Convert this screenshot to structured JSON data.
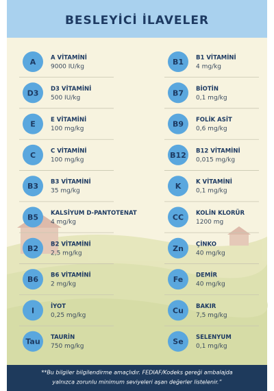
{
  "header": {
    "title": "BESLEYİCİ İLAVELER"
  },
  "columns": [
    [
      {
        "badge": "A",
        "name": "A VİTAMİNİ",
        "amount": "9000 IU/kg"
      },
      {
        "badge": "D3",
        "name": "D3 VİTAMİNİ",
        "amount": "500 IU/kg"
      },
      {
        "badge": "E",
        "name": "E VİTAMİNİ",
        "amount": "100 mg/kg"
      },
      {
        "badge": "C",
        "name": "C VİTAMİNİ",
        "amount": "100 mg/kg"
      },
      {
        "badge": "B3",
        "name": "B3 VİTAMİNİ",
        "amount": "35 mg/kg"
      },
      {
        "badge": "B5",
        "name": "KALSİYUM D-PANTOTENAT",
        "amount": "4 mg/kg"
      },
      {
        "badge": "B2",
        "name": "B2 VİTAMİNİ",
        "amount": "2,5 mg/kg"
      },
      {
        "badge": "B6",
        "name": "B6 VİTAMİNİ",
        "amount": "2 mg/kg"
      },
      {
        "badge": "I",
        "name": "İYOT",
        "amount": "0,25 mg/kg"
      },
      {
        "badge": "Tau",
        "name": "TAURİN",
        "amount": "750 mg/kg"
      }
    ],
    [
      {
        "badge": "B1",
        "name": "B1 VİTAMİNİ",
        "amount": "4 mg/kg"
      },
      {
        "badge": "B7",
        "name": "BİOTİN",
        "amount": "0,1 mg/kg"
      },
      {
        "badge": "B9",
        "name": "FOLİK ASİT",
        "amount": "0,6 mg/kg"
      },
      {
        "badge": "B12",
        "name": "B12 VİTAMİNİ",
        "amount": "0,015 mg/kg"
      },
      {
        "badge": "K",
        "name": "K VİTAMİNİ",
        "amount": "0,1 mg/kg"
      },
      {
        "badge": "CC",
        "name": "KOLİN KLORÜR",
        "amount": "1200 mg"
      },
      {
        "badge": "Zn",
        "name": "ÇİNKO",
        "amount": "40 mg/kg"
      },
      {
        "badge": "Fe",
        "name": "DEMİR",
        "amount": "40 mg/kg"
      },
      {
        "badge": "Cu",
        "name": "BAKIR",
        "amount": "7,5 mg/kg"
      },
      {
        "badge": "Se",
        "name": "SELENYUM",
        "amount": "0,1 mg/kg"
      }
    ]
  ],
  "footer": {
    "lines": [
      "**Bu bilgiler bilgilendirme amaçlıdır. FEDIAF/Kodeks gereği ambalajda",
      "yalnızca zorunlu minimum seviyeleri aşan değerler listelenir.”"
    ]
  }
}
